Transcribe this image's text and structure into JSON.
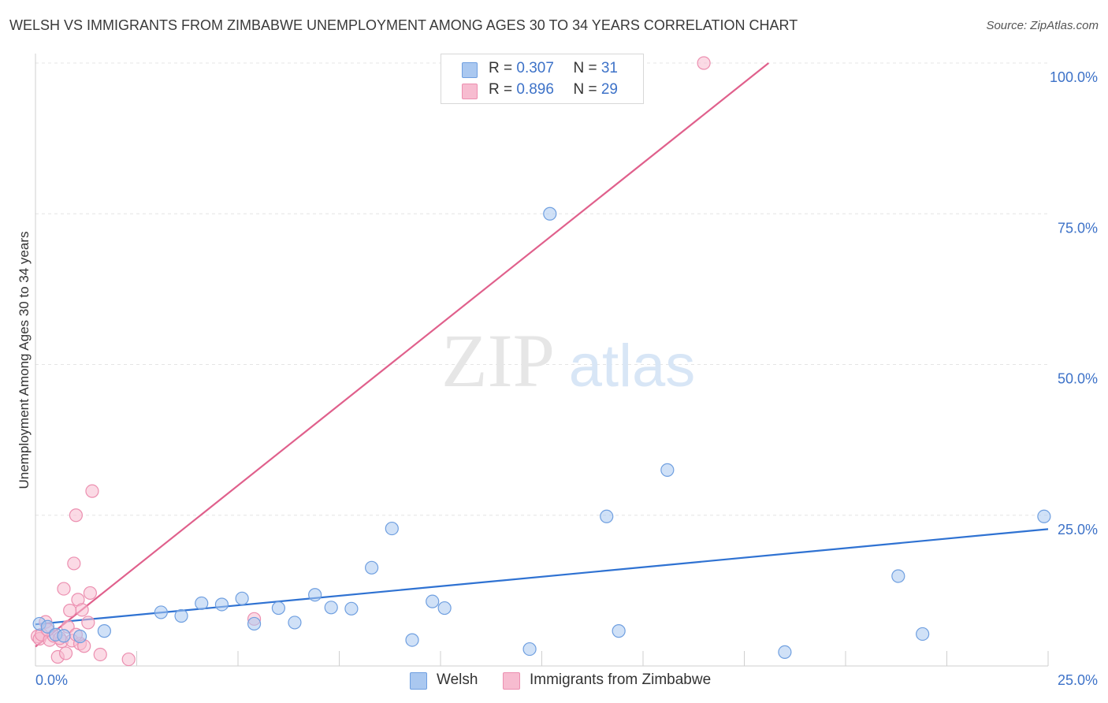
{
  "header": {
    "title": "WELSH VS IMMIGRANTS FROM ZIMBABWE UNEMPLOYMENT AMONG AGES 30 TO 34 YEARS CORRELATION CHART",
    "source": "Source: ZipAtlas.com"
  },
  "watermark": {
    "zip": "ZIP",
    "atlas": "atlas"
  },
  "legend_top": {
    "rows": [
      {
        "r_label": "R = ",
        "r_value": "0.307",
        "n_label": "N = ",
        "n_value": "31"
      },
      {
        "r_label": "R = ",
        "r_value": "0.896",
        "n_label": "N = ",
        "n_value": "29"
      }
    ]
  },
  "colors": {
    "welsh_fill": "#aac8f0",
    "welsh_stroke": "#6f9fe0",
    "welsh_line": "#2f72d2",
    "zim_fill": "#f7bcd0",
    "zim_stroke": "#ec8fb0",
    "zim_line": "#e0608c",
    "tick_text": "#3d72c8",
    "grid": "#e4e4e4"
  },
  "chart_data": {
    "type": "scatter",
    "title": "WELSH VS IMMIGRANTS FROM ZIMBABWE UNEMPLOYMENT AMONG AGES 30 TO 34 YEARS CORRELATION CHART",
    "xlabel": "",
    "ylabel": "Unemployment Among Ages 30 to 34 years",
    "xlim": [
      0,
      25
    ],
    "ylim": [
      0,
      100
    ],
    "x_tick_labels": [
      "0.0%",
      "25.0%"
    ],
    "y_tick_labels": [
      "25.0%",
      "50.0%",
      "75.0%",
      "100.0%"
    ],
    "y_ticks": [
      25,
      50,
      75,
      100
    ],
    "grid": true,
    "legend_position": "bottom-center",
    "series": [
      {
        "name": "Welsh",
        "r": 0.307,
        "n": 31,
        "trend": {
          "x": [
            0,
            25
          ],
          "y": [
            6.9,
            22.7
          ]
        },
        "points": [
          [
            0.1,
            7.0
          ],
          [
            0.3,
            6.5
          ],
          [
            0.5,
            5.2
          ],
          [
            0.7,
            5.0
          ],
          [
            1.1,
            4.9
          ],
          [
            1.7,
            5.8
          ],
          [
            3.1,
            8.9
          ],
          [
            3.6,
            8.3
          ],
          [
            4.1,
            10.4
          ],
          [
            4.6,
            10.2
          ],
          [
            5.1,
            11.2
          ],
          [
            5.4,
            7.0
          ],
          [
            6.0,
            9.6
          ],
          [
            6.4,
            7.2
          ],
          [
            6.9,
            11.8
          ],
          [
            7.3,
            9.7
          ],
          [
            7.8,
            9.5
          ],
          [
            8.3,
            16.3
          ],
          [
            8.8,
            22.8
          ],
          [
            9.3,
            4.3
          ],
          [
            9.8,
            10.7
          ],
          [
            10.1,
            9.6
          ],
          [
            12.2,
            2.8
          ],
          [
            12.7,
            75.0
          ],
          [
            14.1,
            24.8
          ],
          [
            14.4,
            5.8
          ],
          [
            15.6,
            32.5
          ],
          [
            18.5,
            2.3
          ],
          [
            21.3,
            14.9
          ],
          [
            21.9,
            5.3
          ],
          [
            24.9,
            24.8
          ]
        ]
      },
      {
        "name": "Immigrants from Zimbabwe",
        "r": 0.896,
        "n": 29,
        "trend": {
          "x": [
            0,
            18.1
          ],
          "y": [
            3.2,
            100
          ]
        },
        "points": [
          [
            0.05,
            4.9
          ],
          [
            0.1,
            4.5
          ],
          [
            0.15,
            5.2
          ],
          [
            0.25,
            7.3
          ],
          [
            0.35,
            4.3
          ],
          [
            0.45,
            5.0
          ],
          [
            0.55,
            1.5
          ],
          [
            0.65,
            4.1
          ],
          [
            0.7,
            12.8
          ],
          [
            0.75,
            2.1
          ],
          [
            0.8,
            6.5
          ],
          [
            0.85,
            9.2
          ],
          [
            0.9,
            4.2
          ],
          [
            0.95,
            17.0
          ],
          [
            1.0,
            25.0
          ],
          [
            1.05,
            11.0
          ],
          [
            1.1,
            3.7
          ],
          [
            1.15,
            9.3
          ],
          [
            1.2,
            3.3
          ],
          [
            1.3,
            7.2
          ],
          [
            1.35,
            12.1
          ],
          [
            1.4,
            29.0
          ],
          [
            1.6,
            1.9
          ],
          [
            2.3,
            1.1
          ],
          [
            5.4,
            7.8
          ],
          [
            16.5,
            100.0
          ],
          [
            0.3,
            6.0
          ],
          [
            0.6,
            4.6
          ],
          [
            1.0,
            5.2
          ]
        ]
      }
    ]
  },
  "legend_bottom": {
    "items": [
      {
        "label": "Welsh"
      },
      {
        "label": "Immigrants from Zimbabwe"
      }
    ]
  }
}
